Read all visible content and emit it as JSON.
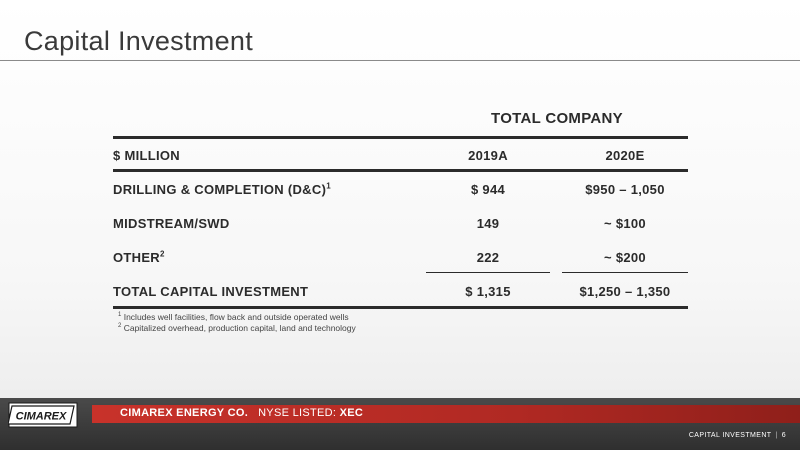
{
  "slide": {
    "title": "Capital Investment"
  },
  "table": {
    "group_header": "TOTAL COMPANY",
    "header": {
      "label": "$ MILLION",
      "col1": "2019A",
      "col2": "2020E"
    },
    "rows": [
      {
        "label": "DRILLING & COMPLETION (D&C)",
        "sup": "1",
        "col1": "$ 944",
        "col2": "$950 – 1,050"
      },
      {
        "label": "MIDSTREAM/SWD",
        "sup": "",
        "col1": "149",
        "col2": "~ $100"
      },
      {
        "label": "OTHER",
        "sup": "2",
        "col1": "222",
        "col2": "~ $200"
      }
    ],
    "total": {
      "label": "TOTAL CAPITAL INVESTMENT",
      "col1": "$ 1,315",
      "col2": "$1,250 – 1,350"
    }
  },
  "footnotes": [
    {
      "num": "1",
      "text": "Includes well facilities, flow back and outside operated wells"
    },
    {
      "num": "2",
      "text": "Capitalized overhead, production capital, land and technology"
    }
  ],
  "footer": {
    "logo_text": "CIMAREX",
    "brand": "CIMAREX ENERGY CO.",
    "listing_label": "NYSE LISTED:",
    "ticker": "XEC",
    "section": "CAPITAL INVESTMENT",
    "separator": "|",
    "page_number": "6"
  },
  "colors": {
    "accent_red": "#c8322a",
    "footer_dark": "#3a3a3a",
    "text": "#2b2b2b"
  }
}
